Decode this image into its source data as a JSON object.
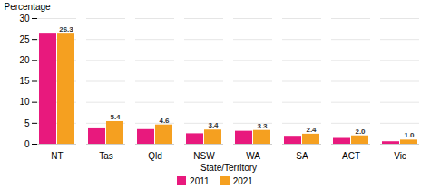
{
  "chart_data": {
    "type": "bar",
    "xlabel": "State/Territory",
    "ylabel": "Percentage",
    "categories": [
      "NT",
      "Tas",
      "Qld",
      "NSW",
      "WA",
      "SA",
      "ACT",
      "Vic"
    ],
    "series": [
      {
        "name": "2011",
        "color": "#e8197d",
        "values": [
          26.3,
          3.9,
          3.5,
          2.5,
          3.1,
          1.9,
          1.4,
          0.6
        ]
      },
      {
        "name": "2021",
        "color": "#f5a020",
        "values": [
          26.3,
          5.4,
          4.6,
          3.4,
          3.3,
          2.4,
          2.0,
          1.0
        ],
        "data_labels": true,
        "value_labels": [
          "26.3",
          "5.4",
          "4.6",
          "3.4",
          "3.3",
          "2.4",
          "2.0",
          "1.0"
        ]
      }
    ],
    "ylim": [
      0,
      30
    ],
    "yticks": [
      0,
      5,
      10,
      15,
      20,
      25,
      30
    ],
    "grid": true,
    "legend": "bottom"
  }
}
